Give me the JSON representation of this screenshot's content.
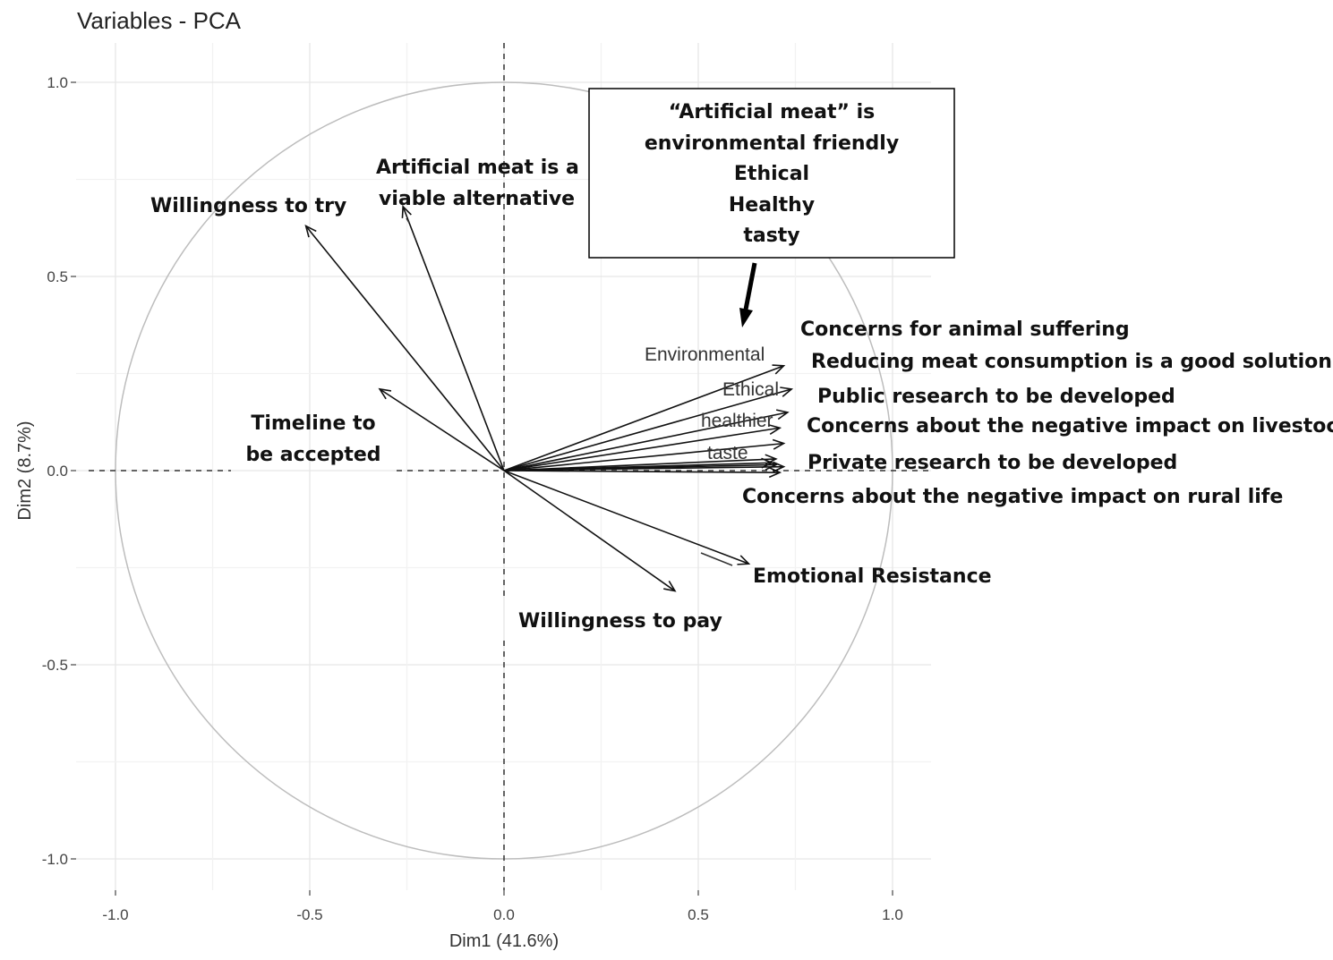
{
  "chart_data": {
    "type": "scatter",
    "title": "Variables - PCA",
    "xlabel": "Dim1 (41.6%)",
    "ylabel": "Dim2 (8.7%)",
    "xlim": [
      -1.0,
      1.0
    ],
    "ylim": [
      -1.0,
      1.0
    ],
    "x_ticks": [
      "-1.0",
      "-0.5",
      "0.0",
      "0.5",
      "1.0"
    ],
    "y_ticks": [
      "1.0",
      "0.5",
      "0.0",
      "-0.5",
      "-1.0"
    ],
    "grid": true,
    "vectors": [
      {
        "name": "Willingness to try",
        "x": -0.51,
        "y": 0.63
      },
      {
        "name": "Artificial meat is a viable alternative",
        "x": -0.26,
        "y": 0.68
      },
      {
        "name": "Timeline to be accepted",
        "x": -0.32,
        "y": 0.21
      },
      {
        "name": "Environmental",
        "x": 0.72,
        "y": 0.27
      },
      {
        "name": "Ethical",
        "x": 0.74,
        "y": 0.21
      },
      {
        "name": "healthier",
        "x": 0.73,
        "y": 0.15
      },
      {
        "name": "taste",
        "x": 0.72,
        "y": 0.07
      },
      {
        "name": "Concerns for animal suffering",
        "x": 0.71,
        "y": 0.11
      },
      {
        "name": "Reducing meat consumption is a good solution",
        "x": 0.7,
        "y": 0.03
      },
      {
        "name": "Public research to be developed",
        "x": 0.69,
        "y": 0.02
      },
      {
        "name": "Concerns about the negative impact on livestock",
        "x": 0.72,
        "y": 0.01
      },
      {
        "name": "Private research to be developed",
        "x": 0.71,
        "y": -0.005
      },
      {
        "name": "Concerns about the negative impact on rural life",
        "x": 0.7,
        "y": 0.015
      },
      {
        "name": "Emotional Resistance",
        "x": 0.63,
        "y": -0.24
      },
      {
        "name": "Willingness to pay",
        "x": 0.44,
        "y": -0.31
      }
    ],
    "plot_labels": [
      "Environmental",
      "Ethical",
      "healthier",
      "taste"
    ],
    "annotations": {
      "willingness_to_try": "Willingness to try",
      "viable_line1": "Artificial meat is a",
      "viable_line2": "viable alternative",
      "timeline_line1": "Timeline to",
      "timeline_line2": "be accepted",
      "animal_suffering": "Concerns for animal suffering",
      "reducing": "Reducing meat consumption is a good solution",
      "public_research": "Public research to be developed",
      "livestock": "Concerns about the negative impact on livestock",
      "private_research": "Private research to be developed",
      "rural_life": "Concerns about the negative impact on rural life",
      "emotional": "Emotional Resistance",
      "willingness_pay": "Willingness to pay"
    },
    "callout_box": {
      "lines": [
        "“Artificial meat” is",
        "environmental friendly",
        "Ethical",
        "Healthy",
        "tasty"
      ]
    }
  }
}
